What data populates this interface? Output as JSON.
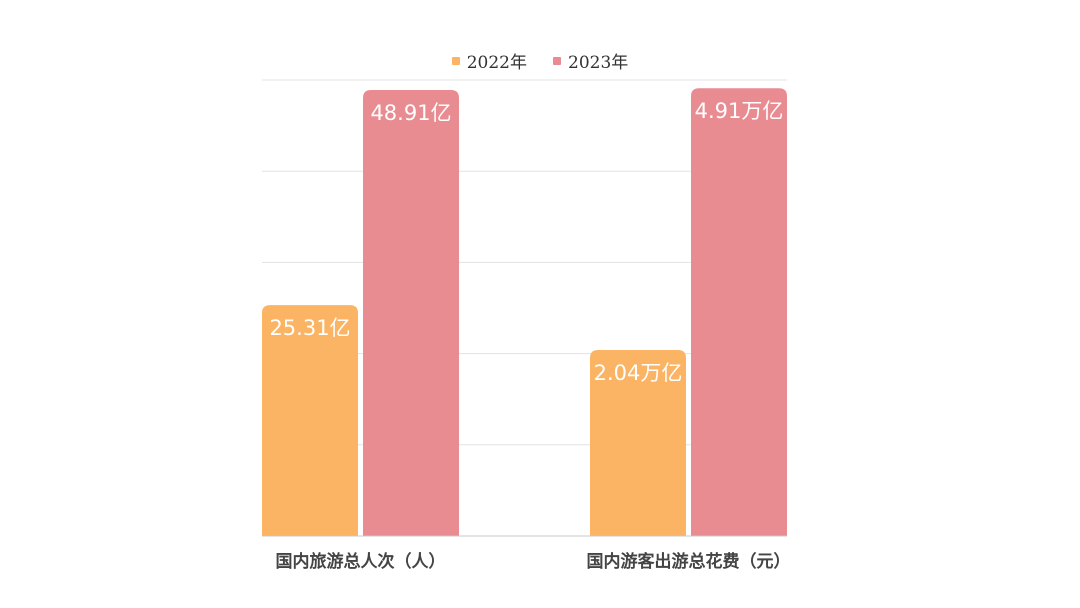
{
  "chart_data": {
    "type": "bar",
    "categories": [
      "国内旅游总人次（人）",
      "国内游客出游总花费（元）"
    ],
    "series": [
      {
        "name": "2022年",
        "color": "#FBB463",
        "values": [
          25.31,
          2.04
        ],
        "labels": [
          "25.31亿",
          "2.04万亿"
        ]
      },
      {
        "name": "2023年",
        "color": "#E98C92",
        "values": [
          48.91,
          4.91
        ],
        "labels": [
          "48.91亿",
          "4.91万亿"
        ]
      }
    ],
    "category_scales": [
      [
        0,
        50
      ],
      [
        0,
        5
      ]
    ],
    "grid": true,
    "legend_position": "top"
  }
}
